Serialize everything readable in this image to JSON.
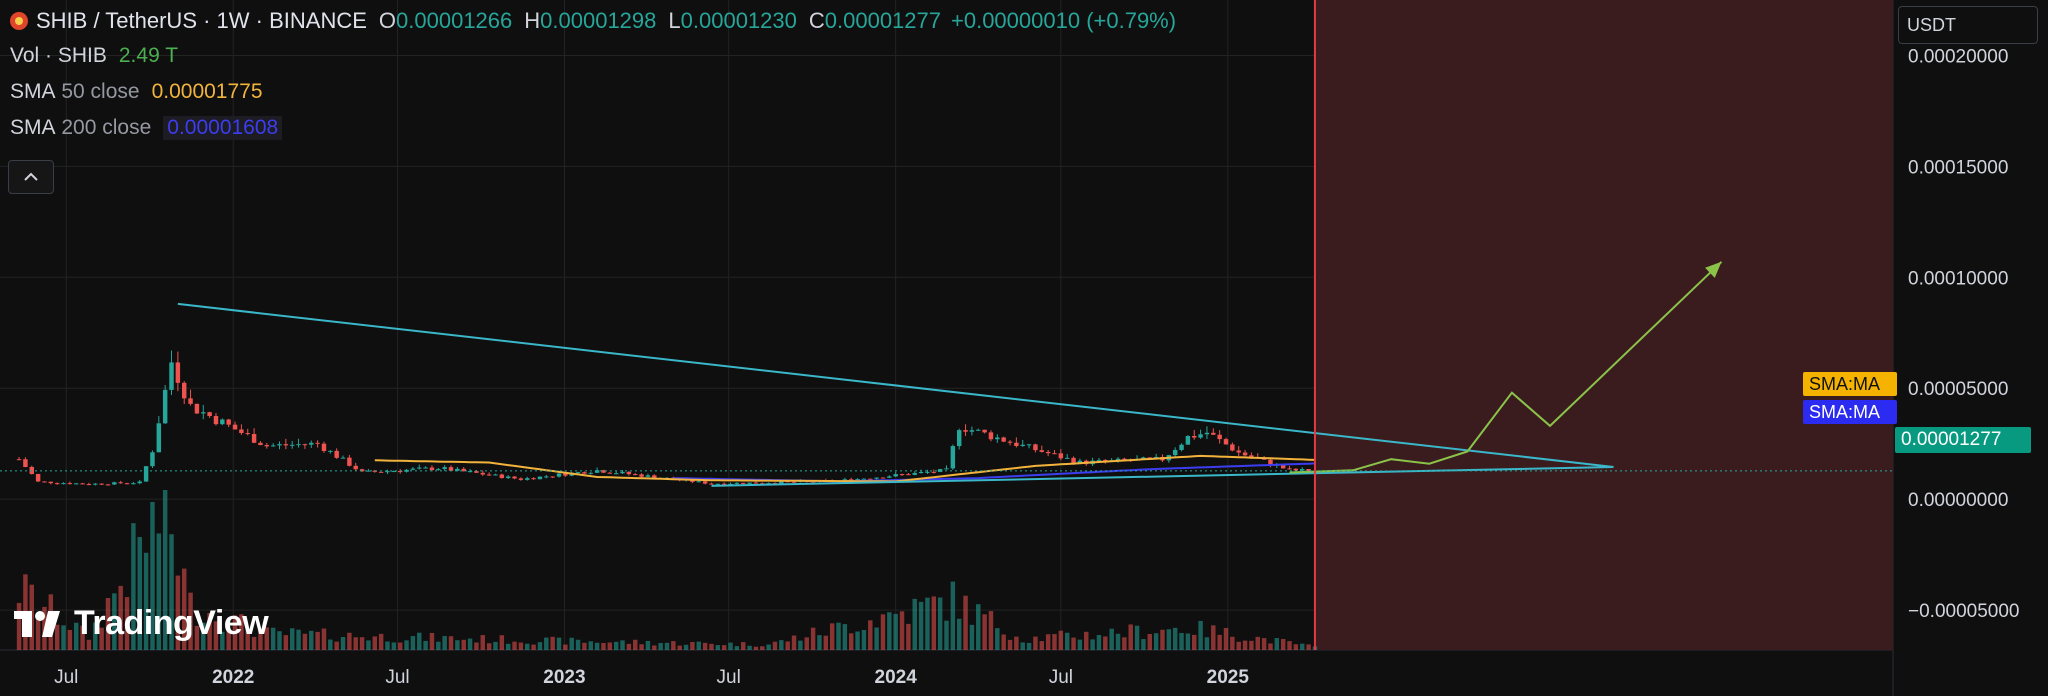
{
  "header": {
    "symbol": "SHIB / TetherUS · 1W · BINANCE",
    "open_label": "O",
    "open": "0.00001266",
    "high_label": "H",
    "high": "0.00001298",
    "low_label": "L",
    "low": "0.00001230",
    "close_label": "C",
    "close": "0.00001277",
    "change": "+0.00000010 (+0.79%)"
  },
  "indicators": {
    "vol_label": "Vol · SHIB",
    "vol_value": "2.49 T",
    "sma50_label": "SMA",
    "sma50_param": "50 close",
    "sma50_value": "0.00001775",
    "sma200_label": "SMA",
    "sma200_param": "200 close",
    "sma200_value": "0.00001608"
  },
  "currency": "USDT",
  "price_tags": {
    "sma50": "SMA:MA",
    "sma200": "SMA:MA",
    "last": "0.00001277"
  },
  "brand": "TradingView",
  "colors": {
    "up": "#26a69a",
    "down": "#ef5350",
    "sma50": "#f2b33d",
    "sma200": "#3c3cf0",
    "trendline": "#3ab7c9",
    "projection": "#8bc34a",
    "vertical_marker": "#e53945"
  },
  "chart_data": {
    "type": "candlestick",
    "interval": "1W",
    "y_ticks": [
      "0.00020000",
      "0.00015000",
      "0.00010000",
      "0.00005000",
      "0.00000000",
      "−0.00005000"
    ],
    "y_tick_values": [
      0.0002,
      0.00015,
      0.0001,
      5e-05,
      0,
      -5e-05
    ],
    "ylim": [
      -6.8e-05,
      0.000225
    ],
    "x_ticks": [
      {
        "label": "Jul",
        "date": "2021-07-01",
        "bold": false
      },
      {
        "label": "2022",
        "date": "2022-01-01",
        "bold": true
      },
      {
        "label": "Jul",
        "date": "2022-07-01",
        "bold": false
      },
      {
        "label": "2023",
        "date": "2023-01-01",
        "bold": true
      },
      {
        "label": "Jul",
        "date": "2023-07-01",
        "bold": false
      },
      {
        "label": "2024",
        "date": "2024-01-01",
        "bold": true
      },
      {
        "label": "Jul",
        "date": "2024-07-01",
        "bold": false
      },
      {
        "label": "2025",
        "date": "2025-01-01",
        "bold": true
      }
    ],
    "xlim": [
      "2021-04-19",
      "2027-01-04"
    ],
    "last_price": 1.277e-05,
    "cursor_date": "2025-04-07",
    "price_anchors": [
      [
        "2021-05-10",
        1.8e-05
      ],
      [
        "2021-05-31",
        7.8e-06
      ],
      [
        "2021-07-26",
        6.8e-06
      ],
      [
        "2021-09-20",
        7.5e-06
      ],
      [
        "2021-10-04",
        2.2e-05
      ],
      [
        "2021-10-25",
        6.2e-05
      ],
      [
        "2021-11-15",
        4.2e-05
      ],
      [
        "2021-12-27",
        3.3e-05
      ],
      [
        "2022-02-07",
        2.4e-05
      ],
      [
        "2022-04-04",
        2.5e-05
      ],
      [
        "2022-05-23",
        1.2e-05
      ],
      [
        "2022-08-15",
        1.4e-05
      ],
      [
        "2022-11-14",
        9e-06
      ],
      [
        "2023-02-06",
        1.3e-05
      ],
      [
        "2023-06-12",
        7e-06
      ],
      [
        "2023-10-23",
        8e-06
      ],
      [
        "2024-02-26",
        1.3e-05
      ],
      [
        "2024-03-11",
        3.3e-05
      ],
      [
        "2024-05-20",
        2.4e-05
      ],
      [
        "2024-07-22",
        1.65e-05
      ],
      [
        "2024-10-21",
        1.8e-05
      ],
      [
        "2024-11-18",
        2.8e-05
      ],
      [
        "2024-12-09",
        3e-05
      ],
      [
        "2025-01-13",
        2.1e-05
      ],
      [
        "2025-03-10",
        1.3e-05
      ],
      [
        "2025-04-07",
        1.28e-05
      ]
    ],
    "volume_anchors": [
      [
        "2021-05-10",
        0.55
      ],
      [
        "2021-07-26",
        0.12
      ],
      [
        "2021-10-18",
        1.3
      ],
      [
        "2021-11-15",
        0.4
      ],
      [
        "2022-02-07",
        0.15
      ],
      [
        "2022-06-13",
        0.12
      ],
      [
        "2023-01-02",
        0.08
      ],
      [
        "2023-08-14",
        0.05
      ],
      [
        "2024-03-04",
        0.45
      ],
      [
        "2024-05-20",
        0.1
      ],
      [
        "2024-11-18",
        0.2
      ],
      [
        "2025-04-07",
        0.03
      ]
    ],
    "sma50_anchors": [
      [
        "2022-06-06",
        1.75e-05
      ],
      [
        "2022-10-10",
        1.65e-05
      ],
      [
        "2023-02-06",
        1e-05
      ],
      [
        "2023-06-12",
        8.5e-06
      ],
      [
        "2024-01-01",
        8e-06
      ],
      [
        "2024-06-03",
        1.5e-05
      ],
      [
        "2024-12-02",
        1.95e-05
      ],
      [
        "2025-04-07",
        1.77e-05
      ]
    ],
    "sma200_anchors": [
      [
        "2023-05-01",
        9.5e-06
      ],
      [
        "2023-10-30",
        8e-06
      ],
      [
        "2024-04-01",
        9.5e-06
      ],
      [
        "2024-10-07",
        1.35e-05
      ],
      [
        "2025-04-07",
        1.61e-05
      ]
    ],
    "trendlines": [
      {
        "from": [
          "2021-11-01",
          8.8e-05
        ],
        "to": [
          "2026-03-02",
          1.45e-05
        ]
      },
      {
        "from": [
          "2023-06-12",
          6e-06
        ],
        "to": [
          "2026-03-02",
          1.45e-05
        ]
      }
    ],
    "projection": [
      [
        "2025-03-10",
        1.2e-05
      ],
      [
        "2025-05-19",
        1.3e-05
      ],
      [
        "2025-06-30",
        1.8e-05
      ],
      [
        "2025-08-11",
        1.6e-05
      ],
      [
        "2025-09-22",
        2.15e-05
      ],
      [
        "2025-11-10",
        4.8e-05
      ],
      [
        "2025-12-22",
        3.3e-05
      ],
      [
        "2026-06-29",
        0.000107
      ]
    ]
  }
}
